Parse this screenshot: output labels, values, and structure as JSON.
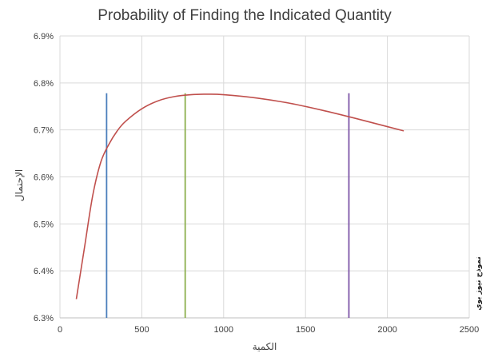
{
  "chart_data": {
    "type": "line",
    "title": "Probability of Finding the Indicated Quantity",
    "xlabel": "الكمية",
    "ylabel": "الإحتمال",
    "side_note": "نموذج نيوز بوي",
    "xlim": [
      0,
      2500
    ],
    "ylim": [
      0.063,
      0.069
    ],
    "x_ticks": [
      0,
      500,
      1000,
      1500,
      2000,
      2500
    ],
    "x_tick_labels": [
      "0",
      "500",
      "1000",
      "1500",
      "2000",
      "2500"
    ],
    "y_ticks": [
      0.063,
      0.064,
      0.065,
      0.066,
      0.067,
      0.068,
      0.069
    ],
    "y_tick_labels": [
      "6.3%",
      "6.4%",
      "6.5%",
      "6.6%",
      "6.7%",
      "6.8%",
      "6.9%"
    ],
    "grid": true,
    "series": [
      {
        "color": "#c0504d",
        "x": [
          100,
          150,
          200,
          250,
          300,
          350,
          400,
          500,
          600,
          700,
          800,
          900,
          1000,
          1200,
          1400,
          1600,
          1800,
          2000,
          2100
        ],
        "y": [
          0.0634,
          0.0645,
          0.0656,
          0.06632,
          0.0667,
          0.06698,
          0.06718,
          0.06745,
          0.06762,
          0.06771,
          0.06775,
          0.06776,
          0.06775,
          0.06768,
          0.06757,
          0.06742,
          0.06725,
          0.06707,
          0.06698
        ]
      }
    ],
    "vertical_lines": [
      {
        "x": 285,
        "color": "#4a7ebb"
      },
      {
        "x": 765,
        "color": "#8caf4e"
      },
      {
        "x": 1765,
        "color": "#7e57a8"
      }
    ],
    "vertical_line_top": 0.06778
  }
}
